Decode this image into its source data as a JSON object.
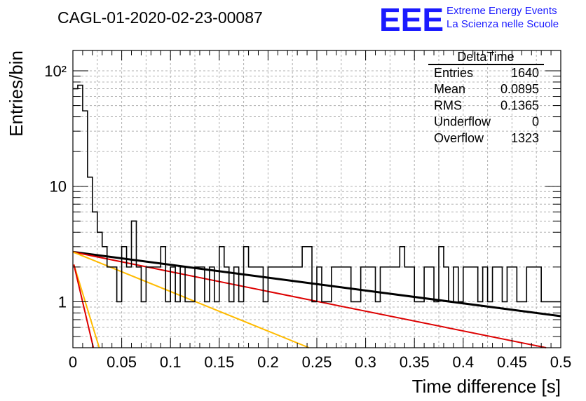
{
  "title": "CAGL-01-2020-02-23-00087",
  "logo": {
    "mark": "EEE",
    "line1": "Extreme Energy Events",
    "line2": "La Scienza nelle Scuole"
  },
  "stats": {
    "name": "DeltaTime",
    "rows": [
      {
        "label": "Entries",
        "value": "1640"
      },
      {
        "label": "Mean",
        "value": "0.0895"
      },
      {
        "label": "RMS",
        "value": "0.1365"
      },
      {
        "label": "Underflow",
        "value": "0"
      },
      {
        "label": "Overflow",
        "value": "1323"
      }
    ]
  },
  "chart_data": {
    "type": "histogram",
    "title": "CAGL-01-2020-02-23-00087",
    "xlabel": "Time difference [s]",
    "ylabel": "Entries/bin",
    "xlim": [
      0,
      0.5
    ],
    "ylim": [
      0.4,
      150
    ],
    "y_log_scale": true,
    "grid": true,
    "bin_width": 0.005,
    "x_tick_labels": [
      "0",
      "0.05",
      "0.1",
      "0.15",
      "0.2",
      "0.25",
      "0.3",
      "0.35",
      "0.4",
      "0.45",
      "0.5"
    ],
    "y_tick_labels": [
      "1",
      "10",
      "10²"
    ],
    "bin_counts": [
      70,
      75,
      45,
      12,
      6,
      4,
      3,
      2,
      2,
      1,
      3,
      2,
      5,
      2,
      1,
      2,
      2,
      2,
      3,
      1,
      2,
      1,
      2,
      1,
      1,
      2,
      2,
      1,
      2,
      1,
      3,
      2,
      1,
      2,
      1,
      3,
      2,
      2,
      2,
      1,
      2,
      2,
      2,
      2,
      2,
      2,
      2,
      3,
      3,
      1,
      2,
      1,
      1,
      2,
      2,
      2,
      2,
      1,
      1,
      2,
      2,
      2,
      1,
      2,
      2,
      2,
      2,
      3,
      2,
      2,
      1,
      1,
      2,
      2,
      1,
      3,
      2,
      1,
      2,
      1,
      2,
      2,
      2,
      1,
      2,
      1,
      2,
      2,
      1,
      2,
      2,
      1,
      1,
      2,
      2,
      2,
      1,
      1,
      1,
      1
    ],
    "fit_lines": [
      {
        "color": "#000000",
        "x": [
          0,
          0.5
        ],
        "y": [
          2.7,
          0.75
        ]
      },
      {
        "color": "#dd0000",
        "x": [
          0,
          0.485
        ],
        "y": [
          2.7,
          0.4
        ]
      },
      {
        "color": "#ffbb00",
        "x": [
          0,
          0.242
        ],
        "y": [
          2.7,
          0.4
        ]
      },
      {
        "color": "#ffbb00",
        "x": [
          0.001,
          0.027
        ],
        "y": [
          2.1,
          0.4
        ]
      },
      {
        "color": "#dd0000",
        "x": [
          0.001,
          0.021
        ],
        "y": [
          2.1,
          0.4
        ]
      }
    ]
  }
}
